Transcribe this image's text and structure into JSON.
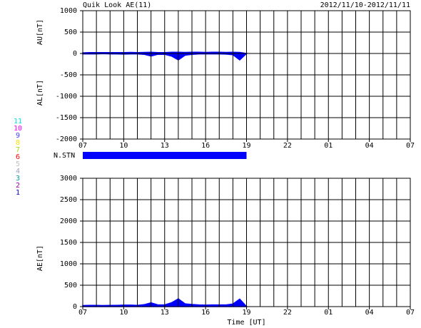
{
  "chart_data": [
    {
      "type": "area",
      "title": "Quik Look AE(11)",
      "date_range": "2012/11/10-2012/11/11",
      "ylabels": [
        "AU[nT]",
        "AL[nT]"
      ],
      "x": [
        0,
        0.5,
        1,
        1.5,
        2,
        2.5,
        3,
        3.5,
        4,
        4.5,
        5,
        5.5,
        6,
        6.5,
        7,
        7.5,
        8,
        8.5,
        9,
        9.5,
        10,
        10.5,
        11,
        11.5,
        12
      ],
      "series": [
        {
          "name": "AU",
          "color": "#0000ff",
          "values": [
            15,
            20,
            20,
            20,
            20,
            20,
            20,
            25,
            20,
            25,
            30,
            20,
            20,
            30,
            30,
            25,
            30,
            30,
            25,
            30,
            30,
            25,
            30,
            25,
            0
          ]
        },
        {
          "name": "AL",
          "color": "#0000ff",
          "values": [
            -10,
            -10,
            -10,
            -5,
            -10,
            -10,
            -15,
            -10,
            -10,
            -20,
            -60,
            -20,
            -20,
            -60,
            -150,
            -40,
            -20,
            -10,
            -10,
            -10,
            -10,
            -15,
            -30,
            -150,
            0
          ]
        }
      ],
      "xlim": [
        0,
        24
      ],
      "minor_step": 1,
      "xticks": [
        {
          "value": 0,
          "label": "07"
        },
        {
          "value": 3,
          "label": "10"
        },
        {
          "value": 6,
          "label": "13"
        },
        {
          "value": 9,
          "label": "16"
        },
        {
          "value": 12,
          "label": "19"
        },
        {
          "value": 15,
          "label": "22"
        },
        {
          "value": 18,
          "label": "01"
        },
        {
          "value": 21,
          "label": "04"
        },
        {
          "value": 24,
          "label": "07"
        }
      ],
      "ylim": [
        -2000,
        1000
      ],
      "yticks": [
        -2000,
        -1500,
        -1000,
        -500,
        0,
        500,
        1000
      ],
      "grid": true
    },
    {
      "type": "area",
      "ylabel": "AE[nT]",
      "xlabel": "Time [UT]",
      "x": [
        0,
        0.5,
        1,
        1.5,
        2,
        2.5,
        3,
        3.5,
        4,
        4.5,
        5,
        5.5,
        6,
        6.5,
        7,
        7.5,
        8,
        8.5,
        9,
        9.5,
        10,
        10.5,
        11,
        11.5,
        12
      ],
      "series": [
        {
          "name": "AE",
          "color": "#0000ff",
          "values": [
            25,
            30,
            30,
            25,
            30,
            30,
            35,
            35,
            30,
            45,
            90,
            40,
            40,
            90,
            180,
            65,
            50,
            40,
            35,
            40,
            40,
            40,
            60,
            175,
            0
          ]
        }
      ],
      "xlim": [
        0,
        24
      ],
      "minor_step": 1,
      "xticks": [
        {
          "value": 0,
          "label": "07"
        },
        {
          "value": 3,
          "label": "10"
        },
        {
          "value": 6,
          "label": "13"
        },
        {
          "value": 9,
          "label": "16"
        },
        {
          "value": 12,
          "label": "19"
        },
        {
          "value": 15,
          "label": "22"
        },
        {
          "value": 18,
          "label": "01"
        },
        {
          "value": 21,
          "label": "04"
        },
        {
          "value": 24,
          "label": "07"
        }
      ],
      "ylim": [
        0,
        3000
      ],
      "yticks": [
        0,
        500,
        1000,
        1500,
        2000,
        2500,
        3000
      ],
      "grid": true
    }
  ],
  "station_bar": {
    "label": "N.STN",
    "start": 0,
    "end": 12,
    "color": "#0000ff"
  },
  "stations": [
    {
      "label": "11",
      "color": "#00e0e0"
    },
    {
      "label": "10",
      "color": "#ff00ff"
    },
    {
      "label": "9",
      "color": "#4040ff"
    },
    {
      "label": "8",
      "color": "#ffe000"
    },
    {
      "label": "7",
      "color": "#a0e000"
    },
    {
      "label": "6",
      "color": "#ff0000"
    },
    {
      "label": "5",
      "color": "#c0c0c0"
    },
    {
      "label": "4",
      "color": "#a0a0c0"
    },
    {
      "label": "3",
      "color": "#00a0a0"
    },
    {
      "label": "2",
      "color": "#a000a0"
    },
    {
      "label": "1",
      "color": "#0000c0"
    }
  ]
}
